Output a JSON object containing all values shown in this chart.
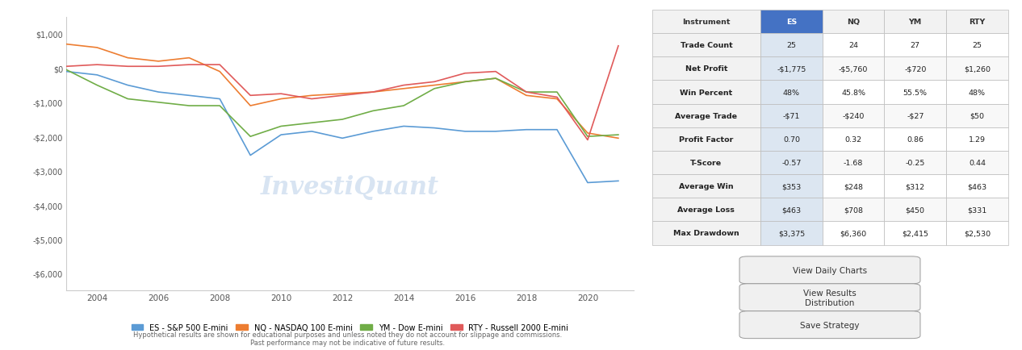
{
  "years": [
    2003,
    2004,
    2005,
    2006,
    2007,
    2008,
    2009,
    2010,
    2011,
    2012,
    2013,
    2014,
    2015,
    2016,
    2017,
    2018,
    2019,
    2020,
    2021
  ],
  "ES": [
    -100,
    -200,
    -500,
    -700,
    -800,
    -900,
    -2550,
    -1950,
    -1850,
    -2050,
    -1850,
    -1700,
    -1750,
    -1850,
    -1850,
    -1800,
    -1800,
    -3350,
    -3300
  ],
  "NQ": [
    700,
    600,
    300,
    200,
    300,
    -100,
    -1100,
    -900,
    -800,
    -750,
    -700,
    -600,
    -500,
    -400,
    -300,
    -800,
    -900,
    -1900,
    -2050
  ],
  "YM": [
    -50,
    -500,
    -900,
    -1000,
    -1100,
    -1100,
    -2000,
    -1700,
    -1600,
    -1500,
    -1250,
    -1100,
    -600,
    -400,
    -300,
    -700,
    -700,
    -2000,
    -1950
  ],
  "RTY": [
    50,
    100,
    50,
    50,
    100,
    100,
    -800,
    -750,
    -900,
    -800,
    -700,
    -500,
    -400,
    -150,
    -100,
    -700,
    -850,
    -2100,
    650
  ],
  "colors": {
    "ES": "#5b9bd5",
    "NQ": "#ed7d31",
    "YM": "#70ad47",
    "RTY": "#e05a5a"
  },
  "ylim": [
    -6500,
    1500
  ],
  "yticks": [
    1000,
    0,
    -1000,
    -2000,
    -3000,
    -4000,
    -5000,
    -6000
  ],
  "ytick_labels": [
    "$1,000",
    "$0",
    "-$1,000",
    "-$2,000",
    "-$3,000",
    "-$4,000",
    "-$5,000",
    "-$6,000"
  ],
  "xticks": [
    2004,
    2006,
    2008,
    2010,
    2012,
    2014,
    2016,
    2018,
    2020
  ],
  "watermark": "InvestiQuant",
  "legend_items": [
    {
      "label": "ES - S&P 500 E-mini",
      "color": "#5b9bd5"
    },
    {
      "label": "NQ - NASDAQ 100 E-mini",
      "color": "#ed7d31"
    },
    {
      "label": "YM - Dow E-mini",
      "color": "#70ad47"
    },
    {
      "label": "RTY - Russell 2000 E-mini",
      "color": "#e05a5a"
    }
  ],
  "disclaimer": "Hypothetical results are shown for educational purposes and unless noted they do not account for slippage and commissions.\nPast performance may not be indicative of future results.",
  "table_headers": [
    "Instrument",
    "ES",
    "NQ",
    "YM",
    "RTY"
  ],
  "table_rows": [
    [
      "Trade Count",
      "25",
      "24",
      "27",
      "25"
    ],
    [
      "Net Profit",
      "-$1,775",
      "-$5,760",
      "-$720",
      "$1,260"
    ],
    [
      "Win Percent",
      "48%",
      "45.8%",
      "55.5%",
      "48%"
    ],
    [
      "Average Trade",
      "-$71",
      "-$240",
      "-$27",
      "$50"
    ],
    [
      "Profit Factor",
      "0.70",
      "0.32",
      "0.86",
      "1.29"
    ],
    [
      "T-Score",
      "-0.57",
      "-1.68",
      "-0.25",
      "0.44"
    ],
    [
      "Average Win",
      "$353",
      "$248",
      "$312",
      "$463"
    ],
    [
      "Average Loss",
      "$463",
      "$708",
      "$450",
      "$331"
    ],
    [
      "Max Drawdown",
      "$3,375",
      "$6,360",
      "$2,415",
      "$2,530"
    ]
  ],
  "button_labels": [
    "View Daily Charts",
    "View Results\nDistribution",
    "Save Strategy"
  ],
  "header_bg": "#4472c4",
  "es_col_bg": "#9dc3e6",
  "row_bg_alt": "#dce6f1",
  "row_bg_main": "#ffffff",
  "table_border": "#cccccc"
}
